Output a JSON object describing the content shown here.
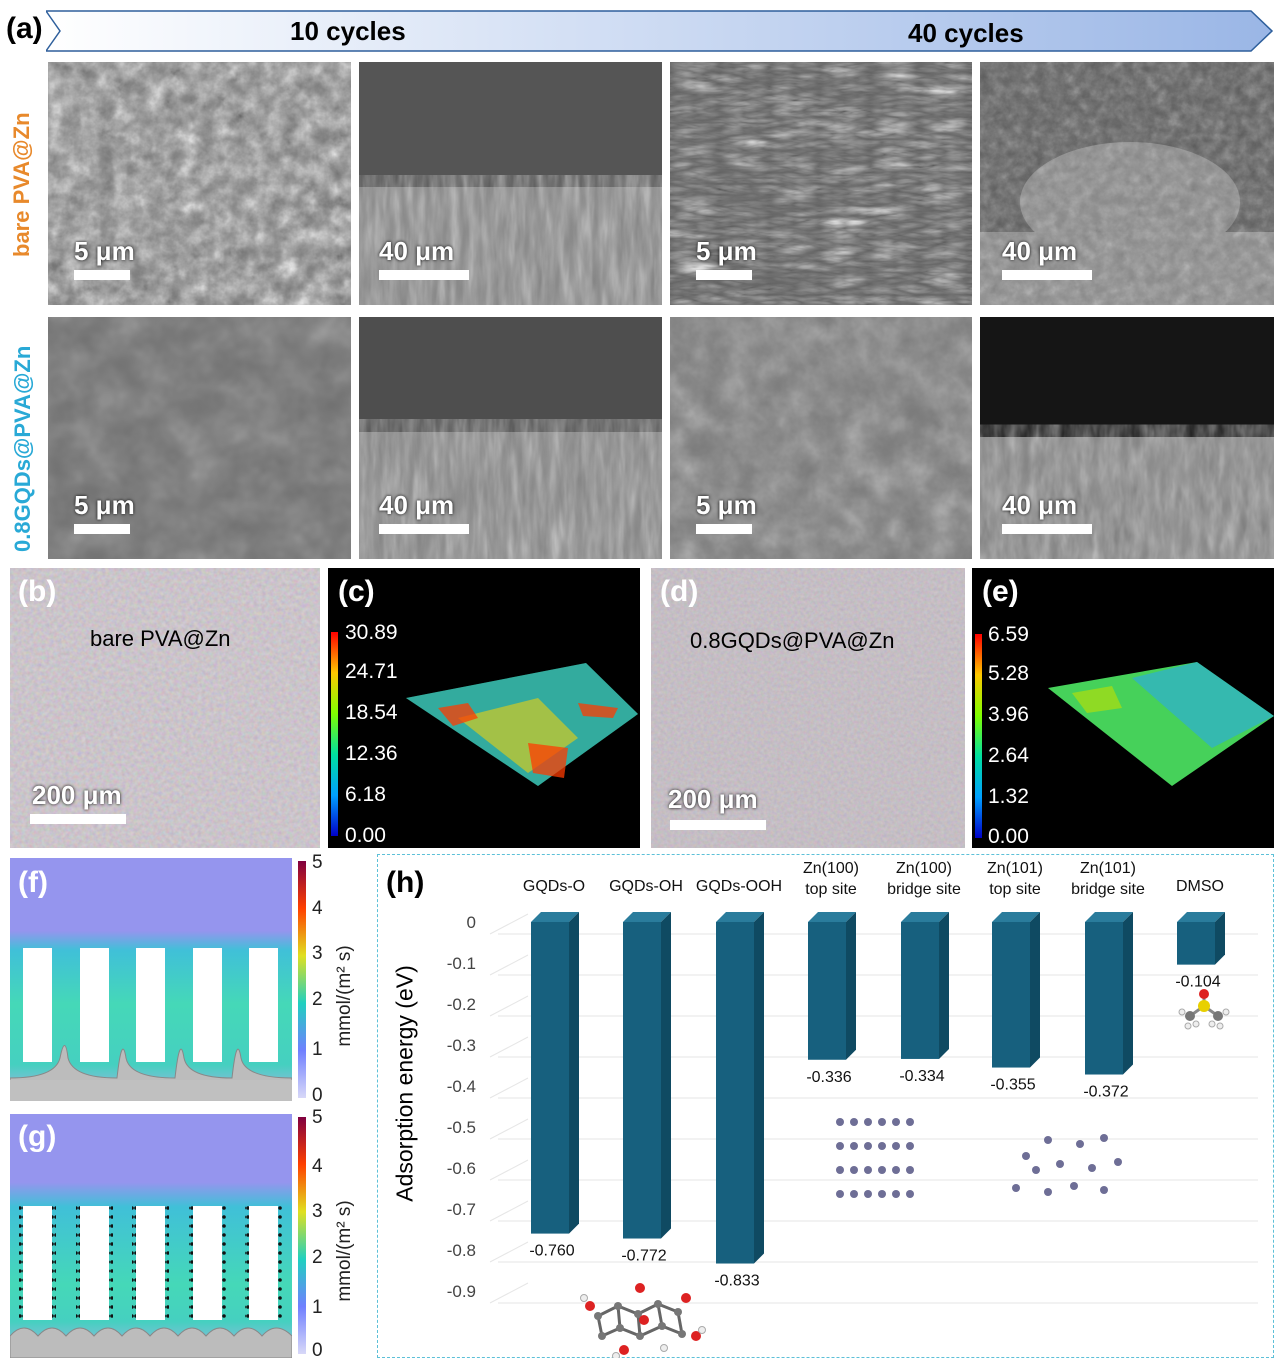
{
  "panel_a": {
    "label": "(a)",
    "arrow_left": "10 cycles",
    "arrow_right": "40 cycles",
    "row1_label": "bare PVA@Zn",
    "row2_label": "0.8GQDs@PVA@Zn",
    "scale_5": "5 μm",
    "scale_40": "40 μm",
    "row1_color": "#e8892b",
    "row2_color": "#29a9d6"
  },
  "panel_b": {
    "label": "(b)",
    "title": "bare PVA@Zn",
    "scale": "200 μm"
  },
  "panel_c": {
    "label": "(c)",
    "ticks": [
      "30.89",
      "24.71",
      "18.54",
      "12.36",
      "6.18",
      "0.00"
    ]
  },
  "panel_d": {
    "label": "(d)",
    "title": "0.8GQDs@PVA@Zn",
    "scale": "200 μm"
  },
  "panel_e": {
    "label": "(e)",
    "ticks": [
      "6.59",
      "5.28",
      "3.96",
      "2.64",
      "1.32",
      "0.00"
    ]
  },
  "panel_f": {
    "label": "(f)",
    "ticks": [
      "5",
      "4",
      "3",
      "2",
      "1",
      "0"
    ],
    "unit": "mmol/(m² s)"
  },
  "panel_g": {
    "label": "(g)",
    "ticks": [
      "5",
      "4",
      "3",
      "2",
      "1",
      "0"
    ],
    "unit": "mmol/(m² s)"
  },
  "panel_h": {
    "label": "(h)"
  },
  "colors": {
    "bar": "#17607e",
    "bar_side": "#0f4a62",
    "bar_top": "#2a7c9c",
    "dash": "#5cc0d8"
  },
  "chart_data": {
    "type": "bar",
    "title": "",
    "xlabel": "",
    "ylabel": "Adsorption energy (eV)",
    "ylim": [
      -0.9,
      0
    ],
    "yticks": [
      "0",
      "-0.1",
      "-0.2",
      "-0.3",
      "-0.4",
      "-0.5",
      "-0.6",
      "-0.7",
      "-0.8",
      "-0.9"
    ],
    "categories": [
      [
        "GQDs-O"
      ],
      [
        "GQDs-OH"
      ],
      [
        "GQDs-OOH"
      ],
      [
        "Zn(100)",
        "top site"
      ],
      [
        "Zn(100)",
        "bridge site"
      ],
      [
        "Zn(101)",
        "top site"
      ],
      [
        "Zn(101)",
        "bridge site"
      ],
      [
        "DMSO"
      ]
    ],
    "values": [
      -0.76,
      -0.772,
      -0.833,
      -0.336,
      -0.334,
      -0.355,
      -0.372,
      -0.104
    ],
    "value_labels": [
      "-0.760",
      "-0.772",
      "-0.833",
      "-0.336",
      "-0.334",
      "-0.355",
      "-0.372",
      "-0.104"
    ]
  }
}
